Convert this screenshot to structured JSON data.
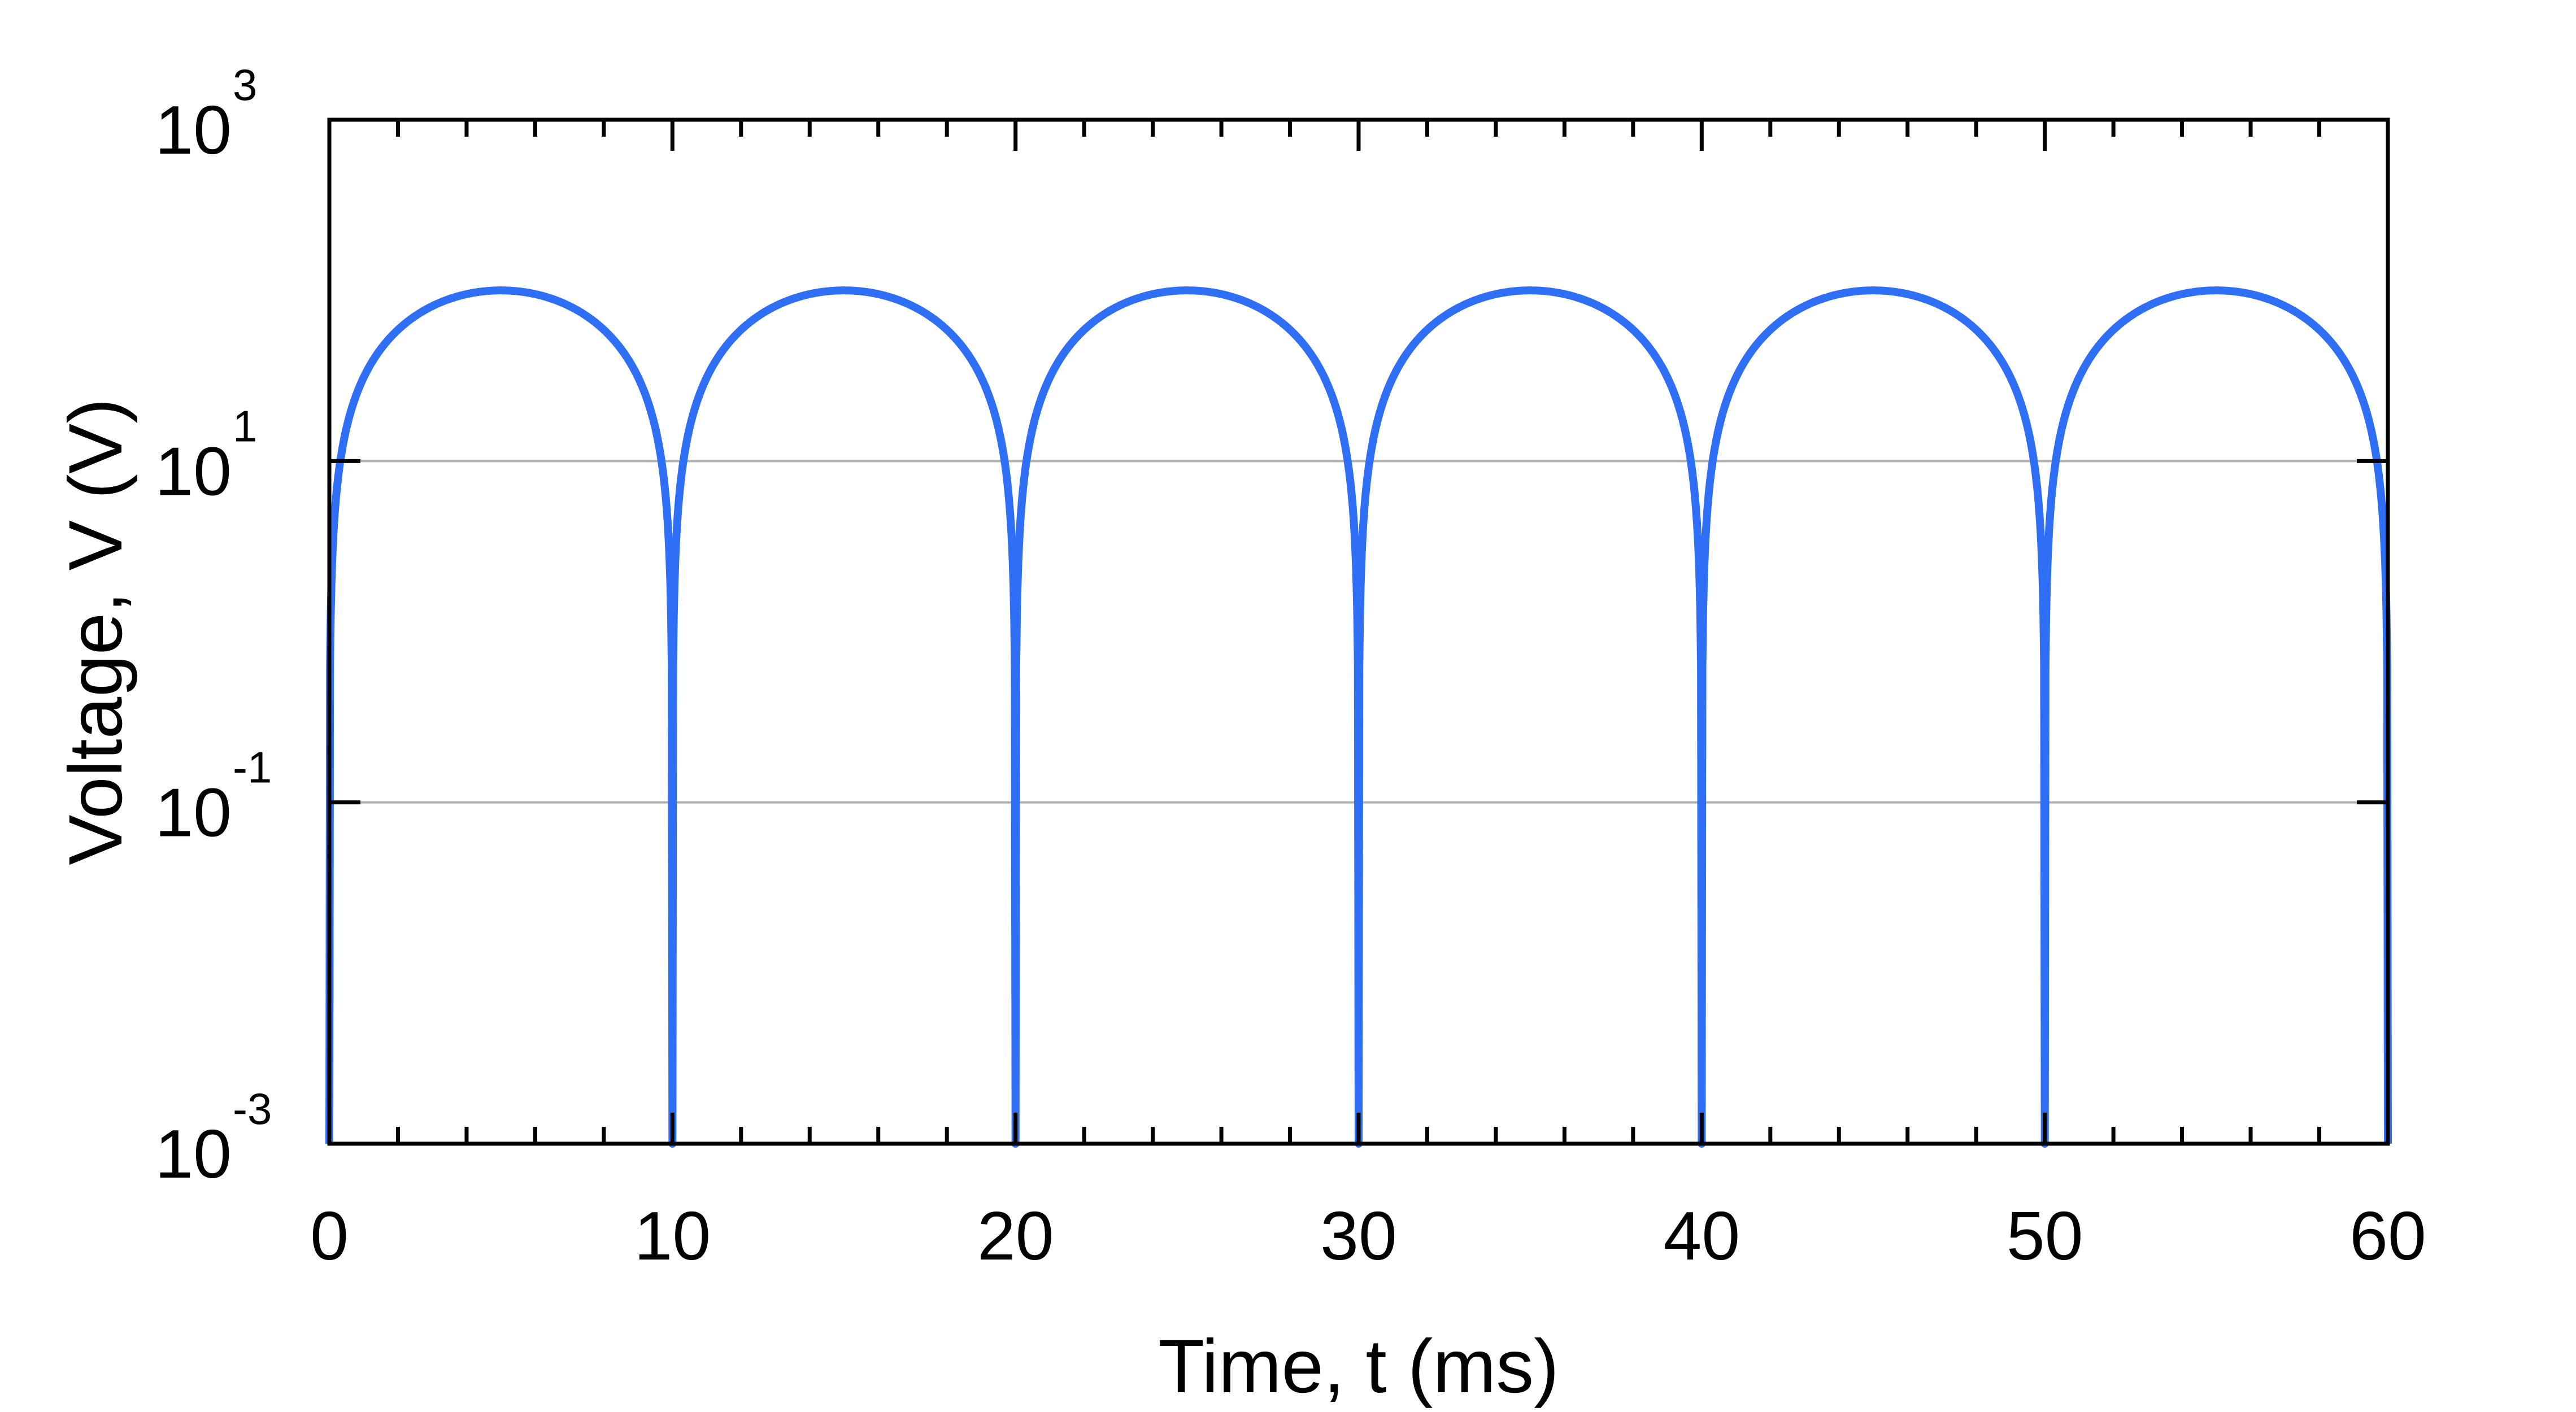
{
  "chart_data": {
    "type": "line",
    "title": "",
    "xlabel": "Time, t (ms)",
    "ylabel": "Voltage, V (V)",
    "xlim": [
      0,
      60
    ],
    "ylim": [
      0.001,
      1000
    ],
    "yscale": "log",
    "xticks": [
      0,
      10,
      20,
      30,
      40,
      50,
      60
    ],
    "xtick_labels": [
      "0",
      "10",
      "20",
      "30",
      "40",
      "50",
      "60"
    ],
    "yticks": [
      {
        "value": 0.001,
        "base": "10",
        "exp": "-3"
      },
      {
        "value": 0.1,
        "base": "10",
        "exp": "-1"
      },
      {
        "value": 10,
        "base": "10",
        "exp": "1"
      },
      {
        "value": 1000,
        "base": "10",
        "exp": "3"
      }
    ],
    "grid": "horizontal at 10^-1 and 10^1",
    "series": [
      {
        "color": "#2f6ff5",
        "x": [
          0,
          0.25,
          0.5,
          1,
          1.5,
          2,
          2.5,
          3,
          3.5,
          4,
          4.5,
          5,
          5.5,
          6,
          6.5,
          7,
          7.5,
          8,
          8.5,
          9,
          9.5,
          9.75,
          10
        ],
        "y": [
          0.001,
          7.8,
          15.6,
          30.9,
          45.4,
          58.8,
          70.7,
          80.9,
          89.1,
          95.1,
          98.8,
          100,
          98.8,
          95.1,
          89.1,
          80.9,
          70.7,
          58.8,
          45.4,
          30.9,
          15.6,
          7.8,
          0.001
        ],
        "period_ms": 10,
        "peak": 100
      }
    ]
  }
}
